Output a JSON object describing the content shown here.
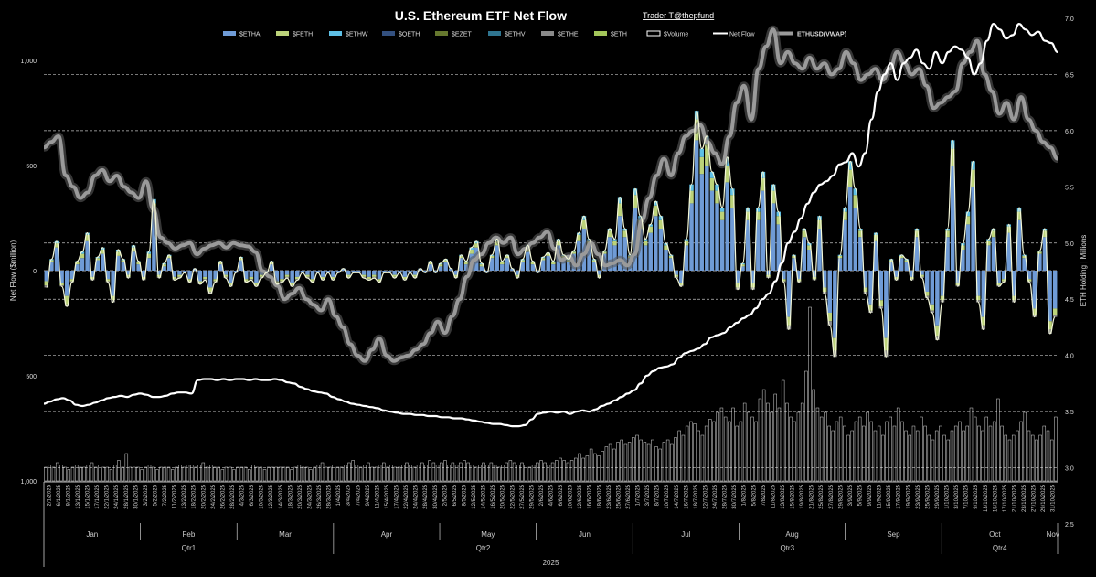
{
  "colors": {
    "background": "#000000",
    "etha": "#6f9bd6",
    "feth": "#bcd37a",
    "ethw": "#5ec0e6",
    "qeth": "#33507f",
    "ezet": "#66782e",
    "ethv": "#2f7590",
    "ethe": "#8a8a8a",
    "eth": "#a3c65a",
    "volume": "#ffffff",
    "netflow": "#ffffff",
    "ethusd": "#9a9a9a",
    "grid": "#bfbfbf",
    "red_tick": "#e03030"
  },
  "chart_data": {
    "type": "bar",
    "title": "U.S. Ethereum ETF Net Flow",
    "credit": "Trader T@thepfund",
    "ylabel_left": "Net Flow ($million)",
    "ylabel_right": "ETH Holding | Millions",
    "yticks_left": [
      {
        "label": "1,000",
        "value": 1000,
        "color": "#ffffff"
      },
      {
        "label": "500",
        "value": 500,
        "color": "#ffffff"
      },
      {
        "label": "0",
        "value": 0,
        "color": "#ffffff"
      },
      {
        "label": "500",
        "value": -500,
        "color": "#e03030"
      },
      {
        "label": "1,000",
        "value": -1000,
        "color": "#e03030"
      }
    ],
    "ylim_left": [
      -1000,
      1000
    ],
    "yticks_right": [
      "2.5",
      "3.0",
      "3.5",
      "4.0",
      "4.5",
      "5.0",
      "5.5",
      "6.0",
      "6.5",
      "7.0"
    ],
    "ylim_right": [
      2.5,
      7.0
    ],
    "legend": [
      {
        "label": "$ETHA",
        "kind": "bar",
        "color": "#6f9bd6"
      },
      {
        "label": "$FETH",
        "kind": "bar",
        "color": "#bcd37a"
      },
      {
        "label": "$ETHW",
        "kind": "bar",
        "color": "#5ec0e6"
      },
      {
        "label": "$QETH",
        "kind": "bar",
        "color": "#33507f"
      },
      {
        "label": "$EZET",
        "kind": "bar",
        "color": "#66782e"
      },
      {
        "label": "$ETHV",
        "kind": "bar",
        "color": "#2f7590"
      },
      {
        "label": "$ETHE",
        "kind": "bar",
        "color": "#8a8a8a"
      },
      {
        "label": "$ETH",
        "kind": "bar",
        "color": "#a3c65a"
      },
      {
        "label": "$Volume",
        "kind": "box",
        "color": "#ffffff"
      },
      {
        "label": "Net Flow",
        "kind": "line",
        "color": "#ffffff"
      },
      {
        "label": "ETHUSD(VWAP)",
        "kind": "thickline",
        "color": "#9a9a9a"
      }
    ],
    "date_labels": [
      "2/1/2025",
      "6/1/2025",
      "8/1/2025",
      "13/1/2025",
      "15/1/2025",
      "17/1/2025",
      "22/1/2025",
      "24/1/2025",
      "28/1/2025",
      "30/1/2025",
      "3/2/2025",
      "5/2/2025",
      "7/2/2025",
      "11/2/2025",
      "13/2/2025",
      "18/2/2025",
      "20/2/2025",
      "24/2/2025",
      "26/2/2025",
      "28/2/2025",
      "4/3/2025",
      "6/3/2025",
      "10/3/2025",
      "12/3/2025",
      "14/3/2025",
      "18/3/2025",
      "20/3/2025",
      "24/3/2025",
      "26/3/2025",
      "28/3/2025",
      "1/4/2025",
      "3/4/2025",
      "7/4/2025",
      "9/4/2025",
      "11/4/2025",
      "15/4/2025",
      "17/4/2025",
      "22/4/2025",
      "24/4/2025",
      "28/4/2025",
      "30/4/2025",
      "2/5/2025",
      "6/5/2025",
      "8/5/2025",
      "12/5/2025",
      "14/5/2025",
      "16/5/2025",
      "20/5/2025",
      "22/5/2025",
      "27/5/2025",
      "29/5/2025",
      "2/6/2025",
      "4/6/2025",
      "6/6/2025",
      "10/6/2025",
      "12/6/2025",
      "16/6/2025",
      "18/6/2025",
      "23/6/2025",
      "25/6/2025",
      "27/6/2025",
      "1/7/2025",
      "3/7/2025",
      "8/7/2025",
      "10/7/2025",
      "14/7/2025",
      "16/7/2025",
      "18/7/2025",
      "22/7/2025",
      "24/7/2025",
      "28/7/2025",
      "30/7/2025",
      "1/8/2025",
      "5/8/2025",
      "7/8/2025",
      "11/8/2025",
      "13/8/2025",
      "15/8/2025",
      "19/8/2025",
      "21/8/2025",
      "25/8/2025",
      "27/8/2025",
      "29/8/2025",
      "3/9/2025",
      "5/9/2025",
      "9/9/2025",
      "11/9/2025",
      "15/9/2025",
      "17/9/2025",
      "19/9/2025",
      "23/9/2025",
      "25/9/2025",
      "29/9/2025",
      "1/10/2025",
      "3/10/2025",
      "7/10/2025",
      "9/10/2025",
      "13/10/2025",
      "15/10/2025",
      "17/10/2025",
      "21/10/2025",
      "23/10/2025",
      "27/10/2025",
      "29/10/2025",
      "31/10/2025"
    ],
    "months": [
      {
        "label": "Jan",
        "start": 0,
        "end": 10
      },
      {
        "label": "Feb",
        "start": 10,
        "end": 20
      },
      {
        "label": "Mar",
        "start": 20,
        "end": 30
      },
      {
        "label": "Apr",
        "start": 30,
        "end": 41
      },
      {
        "label": "May",
        "start": 41,
        "end": 51
      },
      {
        "label": "Jun",
        "start": 51,
        "end": 61
      },
      {
        "label": "Jul",
        "start": 61,
        "end": 72
      },
      {
        "label": "Aug",
        "start": 72,
        "end": 83
      },
      {
        "label": "Sep",
        "start": 83,
        "end": 93
      },
      {
        "label": "Oct",
        "start": 93,
        "end": 104
      },
      {
        "label": "Nov",
        "start": 104,
        "end": 105
      }
    ],
    "quarters": [
      {
        "label": "Qtr1",
        "start": 0,
        "end": 30
      },
      {
        "label": "Qtr2",
        "start": 30,
        "end": 61
      },
      {
        "label": "Qtr3",
        "start": 61,
        "end": 93
      },
      {
        "label": "Qtr4",
        "start": 93,
        "end": 105
      }
    ],
    "year": "2025",
    "etha_daily": [
      -50,
      40,
      110,
      -60,
      -120,
      -40,
      30,
      60,
      140,
      -30,
      50,
      80,
      -40,
      -120,
      70,
      40,
      -20,
      90,
      30,
      -30,
      60,
      280,
      -20,
      20,
      60,
      -30,
      -20,
      -10,
      -40,
      10,
      -50,
      -30,
      -80,
      -40,
      30,
      -20,
      -60,
      -10,
      50,
      -40,
      -30,
      -60,
      -20,
      -10,
      30,
      -50,
      -40,
      -20,
      -60,
      -30,
      -10,
      -20,
      -40,
      -10,
      -30,
      -10,
      -30,
      -10,
      10,
      -20,
      -10,
      -10,
      -20,
      -30,
      -20,
      -40,
      -10,
      -10,
      -20,
      -10,
      -30,
      -10,
      -20,
      10,
      -10,
      30,
      -10,
      20,
      40,
      10,
      -20,
      60,
      30,
      80,
      110,
      20,
      -10,
      60,
      120,
      30,
      60,
      10,
      -20,
      40,
      90,
      30,
      -10,
      50,
      70,
      30,
      120,
      60,
      40,
      80,
      140,
      200,
      120,
      40,
      -20,
      80,
      160,
      120,
      260,
      160,
      60,
      300,
      200,
      120,
      180,
      260,
      200,
      100,
      60,
      -20,
      -60,
      120,
      320,
      620,
      460,
      500,
      380,
      320,
      240,
      420,
      300,
      -60,
      20,
      240,
      -60,
      240,
      380,
      -20,
      320,
      220,
      -40,
      -220,
      60,
      -40,
      160,
      100,
      -30,
      200,
      -80,
      -200,
      -320,
      60,
      240,
      400,
      300,
      160,
      -80,
      -160,
      140,
      -140,
      -320,
      40,
      -30,
      60,
      40,
      -30,
      160,
      -20,
      -100,
      -160,
      -260,
      -120,
      160,
      500,
      -60,
      100,
      220,
      400,
      -120,
      -220,
      120,
      160,
      -60,
      -40,
      180,
      -120,
      240,
      60,
      -40,
      -180,
      80,
      160,
      -240,
      -180
    ],
    "feth_daily": [
      -20,
      10,
      20,
      -10,
      -40,
      -10,
      10,
      20,
      30,
      -10,
      10,
      20,
      -10,
      -20,
      20,
      10,
      -10,
      20,
      10,
      -10,
      20,
      40,
      -10,
      10,
      10,
      -10,
      -10,
      0,
      -10,
      0,
      -10,
      -10,
      -20,
      -10,
      10,
      -10,
      -10,
      0,
      10,
      -10,
      -10,
      -10,
      -10,
      0,
      10,
      -10,
      -10,
      -10,
      -10,
      -10,
      0,
      -10,
      -10,
      0,
      -10,
      0,
      -10,
      0,
      0,
      -10,
      0,
      0,
      -10,
      -10,
      -10,
      -10,
      0,
      0,
      -10,
      0,
      -10,
      0,
      -10,
      0,
      0,
      10,
      0,
      10,
      10,
      0,
      -10,
      10,
      10,
      20,
      20,
      10,
      0,
      10,
      20,
      10,
      10,
      0,
      -10,
      10,
      20,
      10,
      0,
      10,
      10,
      10,
      20,
      10,
      10,
      10,
      30,
      40,
      20,
      10,
      -10,
      10,
      30,
      20,
      60,
      30,
      10,
      60,
      40,
      20,
      30,
      50,
      40,
      20,
      10,
      -10,
      -10,
      20,
      60,
      100,
      80,
      100,
      60,
      60,
      40,
      80,
      60,
      -20,
      10,
      40,
      -20,
      40,
      60,
      -10,
      60,
      40,
      -10,
      -40,
      10,
      -10,
      30,
      20,
      -10,
      40,
      -20,
      -40,
      -60,
      10,
      40,
      80,
      60,
      30,
      -20,
      -30,
      30,
      -30,
      -60,
      10,
      -10,
      10,
      10,
      -10,
      30,
      -10,
      -20,
      -30,
      -50,
      -20,
      30,
      80,
      -10,
      20,
      40,
      80,
      -20,
      -40,
      20,
      30,
      -10,
      -10,
      30,
      -20,
      40,
      10,
      -10,
      -30,
      10,
      30,
      -40,
      -30
    ],
    "etf_other_daily": [
      -10,
      5,
      10,
      -5,
      -10,
      -5,
      5,
      10,
      10,
      -5,
      5,
      10,
      -5,
      -10,
      10,
      5,
      -5,
      10,
      5,
      -5,
      10,
      20,
      -5,
      5,
      5,
      -5,
      -5,
      0,
      -5,
      0,
      -5,
      -5,
      -10,
      -5,
      5,
      -5,
      -5,
      0,
      5,
      -5,
      -5,
      -5,
      -5,
      0,
      5,
      -5,
      -5,
      -5,
      -5,
      -5,
      0,
      -5,
      -5,
      0,
      -5,
      0,
      -5,
      0,
      0,
      -5,
      0,
      0,
      -5,
      -5,
      -5,
      -5,
      0,
      0,
      -5,
      0,
      -5,
      0,
      -5,
      0,
      0,
      5,
      0,
      5,
      5,
      0,
      -5,
      5,
      5,
      10,
      10,
      5,
      0,
      5,
      10,
      5,
      5,
      0,
      -5,
      5,
      10,
      5,
      0,
      5,
      5,
      5,
      10,
      5,
      5,
      5,
      10,
      20,
      10,
      5,
      -5,
      5,
      10,
      10,
      30,
      10,
      5,
      30,
      20,
      10,
      10,
      20,
      20,
      10,
      5,
      -5,
      -5,
      10,
      30,
      40,
      40,
      40,
      30,
      30,
      20,
      40,
      30,
      -10,
      5,
      20,
      -10,
      20,
      30,
      -5,
      30,
      20,
      -5,
      -20,
      5,
      -5,
      10,
      10,
      -5,
      20,
      -10,
      -20,
      -30,
      5,
      20,
      40,
      30,
      10,
      -10,
      -10,
      10,
      -10,
      -30,
      5,
      -5,
      5,
      5,
      -5,
      10,
      -5,
      -10,
      -10,
      -20,
      -10,
      10,
      40,
      -5,
      10,
      20,
      40,
      -10,
      -20,
      10,
      10,
      -5,
      -5,
      10,
      -10,
      20,
      5,
      -5,
      -10,
      5,
      10,
      -20,
      -10
    ],
    "volume_daily": [
      0.3,
      0.35,
      0.3,
      0.4,
      0.35,
      0.3,
      0.25,
      0.3,
      0.35,
      0.3,
      0.3,
      0.35,
      0.4,
      0.3,
      0.35,
      0.3,
      0.3,
      0.25,
      0.35,
      0.45,
      0.3,
      0.6,
      0.3,
      0.3,
      0.3,
      0.25,
      0.3,
      0.35,
      0.3,
      0.25,
      0.3,
      0.3,
      0.3,
      0.25,
      0.3,
      0.35,
      0.3,
      0.35,
      0.35,
      0.3,
      0.35,
      0.4,
      0.3,
      0.35,
      0.3,
      0.3,
      0.25,
      0.3,
      0.3,
      0.25,
      0.3,
      0.3,
      0.3,
      0.25,
      0.35,
      0.3,
      0.3,
      0.25,
      0.3,
      0.3,
      0.3,
      0.3,
      0.3,
      0.3,
      0.25,
      0.3,
      0.35,
      0.3,
      0.3,
      0.25,
      0.3,
      0.35,
      0.4,
      0.3,
      0.3,
      0.35,
      0.3,
      0.3,
      0.35,
      0.4,
      0.45,
      0.35,
      0.3,
      0.35,
      0.4,
      0.3,
      0.3,
      0.35,
      0.4,
      0.3,
      0.35,
      0.3,
      0.3,
      0.35,
      0.4,
      0.35,
      0.3,
      0.35,
      0.4,
      0.35,
      0.45,
      0.4,
      0.35,
      0.4,
      0.45,
      0.35,
      0.4,
      0.35,
      0.4,
      0.45,
      0.4,
      0.35,
      0.3,
      0.35,
      0.4,
      0.35,
      0.4,
      0.35,
      0.3,
      0.35,
      0.4,
      0.45,
      0.4,
      0.35,
      0.4,
      0.35,
      0.3,
      0.35,
      0.4,
      0.45,
      0.4,
      0.35,
      0.4,
      0.45,
      0.5,
      0.45,
      0.4,
      0.45,
      0.5,
      0.6,
      0.5,
      0.55,
      0.7,
      0.6,
      0.55,
      0.65,
      0.75,
      0.8,
      0.7,
      0.85,
      0.9,
      0.8,
      0.85,
      0.95,
      1.0,
      0.9,
      0.85,
      0.8,
      0.9,
      0.75,
      0.7,
      0.85,
      0.9,
      0.8,
      0.95,
      1.1,
      1.0,
      1.2,
      1.3,
      1.25,
      1.1,
      1.0,
      1.2,
      1.35,
      1.3,
      1.5,
      1.6,
      1.4,
      1.3,
      1.6,
      1.2,
      1.3,
      1.7,
      1.5,
      1.4,
      1.3,
      1.8,
      2.0,
      1.7,
      1.5,
      1.9,
      1.6,
      2.2,
      1.7,
      1.4,
      1.3,
      1.5,
      1.7,
      2.4,
      3.8,
      2.0,
      1.6,
      1.4,
      1.5,
      1.2,
      1.1,
      1.3,
      1.4,
      1.2,
      1.0,
      1.1,
      1.3,
      1.4,
      1.2,
      1.5,
      1.3,
      1.1,
      1.2,
      1.0,
      1.3,
      1.4,
      1.2,
      1.6,
      1.3,
      1.1,
      1.0,
      1.2,
      1.1,
      1.4,
      1.2,
      1.0,
      0.9,
      1.1,
      1.2,
      1.0,
      0.9,
      1.1,
      1.2,
      1.3,
      1.1,
      1.2,
      1.6,
      1.4,
      1.2,
      1.1,
      1.4,
      1.2,
      1.3,
      1.8,
      1.2,
      1.0,
      0.9,
      1.0,
      1.1,
      1.3,
      1.5,
      1.1,
      1.0,
      0.9,
      1.0,
      1.2,
      1.1,
      0.9,
      1.4
    ],
    "net_flow_cum_millions": [
      3.57,
      3.59,
      3.61,
      3.62,
      3.6,
      3.56,
      3.55,
      3.56,
      3.58,
      3.6,
      3.62,
      3.63,
      3.64,
      3.63,
      3.65,
      3.66,
      3.65,
      3.63,
      3.63,
      3.64,
      3.66,
      3.67,
      3.67,
      3.66,
      3.78,
      3.79,
      3.79,
      3.78,
      3.79,
      3.78,
      3.79,
      3.79,
      3.78,
      3.79,
      3.78,
      3.78,
      3.79,
      3.78,
      3.76,
      3.75,
      3.72,
      3.7,
      3.68,
      3.67,
      3.66,
      3.63,
      3.61,
      3.59,
      3.57,
      3.56,
      3.55,
      3.54,
      3.53,
      3.51,
      3.5,
      3.49,
      3.48,
      3.48,
      3.47,
      3.47,
      3.46,
      3.46,
      3.45,
      3.45,
      3.44,
      3.44,
      3.43,
      3.42,
      3.41,
      3.4,
      3.39,
      3.39,
      3.38,
      3.37,
      3.37,
      3.38,
      3.43,
      3.48,
      3.49,
      3.5,
      3.49,
      3.5,
      3.48,
      3.5,
      3.51,
      3.5,
      3.52,
      3.55,
      3.57,
      3.6,
      3.63,
      3.66,
      3.69,
      3.75,
      3.82,
      3.86,
      3.89,
      3.9,
      3.92,
      3.98,
      4.02,
      4.04,
      4.06,
      4.1,
      4.16,
      4.18,
      4.2,
      4.25,
      4.29,
      4.33,
      4.36,
      4.42,
      4.5,
      4.55,
      4.66,
      4.82,
      5.0,
      5.1,
      5.22,
      5.35,
      5.45,
      5.52,
      5.55,
      5.6,
      5.7,
      5.72,
      5.8,
      5.68,
      5.8,
      6.1,
      6.35,
      6.5,
      6.6,
      6.45,
      6.6,
      6.65,
      6.72,
      6.6,
      6.55,
      6.7,
      6.6,
      6.7,
      6.75,
      6.72,
      6.65,
      6.5,
      6.6,
      6.8,
      6.95,
      6.9,
      6.82,
      6.85,
      6.95,
      6.9,
      6.85,
      6.88,
      6.8,
      6.78,
      6.7
    ],
    "ethusd_vwap_millions": [
      5.85,
      5.9,
      5.95,
      5.6,
      5.5,
      5.4,
      5.45,
      5.6,
      5.65,
      5.55,
      5.6,
      5.5,
      5.45,
      5.4,
      5.55,
      5.3,
      5.05,
      5.0,
      4.95,
      4.98,
      5.0,
      4.9,
      4.95,
      4.98,
      5.0,
      4.96,
      5.0,
      4.98,
      4.97,
      4.92,
      4.75,
      4.7,
      4.62,
      4.5,
      4.55,
      4.6,
      4.5,
      4.45,
      4.4,
      4.5,
      4.35,
      4.25,
      4.1,
      4.0,
      3.95,
      4.05,
      4.15,
      4.0,
      3.95,
      3.98,
      4.0,
      4.05,
      4.1,
      4.2,
      4.3,
      4.2,
      4.35,
      4.5,
      4.7,
      4.85,
      4.9,
      5.0,
      5.05,
      5.0,
      5.05,
      4.9,
      4.95,
      5.0,
      5.05,
      5.1,
      4.95,
      4.85,
      4.88,
      4.8,
      4.9,
      5.0,
      4.9,
      4.8,
      4.82,
      4.85,
      4.8,
      4.9,
      5.2,
      5.4,
      5.6,
      5.75,
      5.6,
      5.8,
      5.95,
      6.0,
      6.05,
      5.9,
      5.8,
      5.7,
      5.95,
      6.25,
      6.4,
      6.1,
      6.55,
      6.75,
      6.9,
      6.6,
      6.7,
      6.6,
      6.55,
      6.65,
      6.55,
      6.6,
      6.5,
      6.55,
      6.7,
      6.6,
      6.45,
      6.5,
      6.55,
      6.45,
      6.55,
      6.7,
      6.6,
      6.5,
      6.55,
      6.4,
      6.2,
      6.25,
      6.3,
      6.35,
      6.6,
      6.7,
      6.8,
      6.5,
      6.35,
      6.15,
      6.25,
      6.1,
      6.3,
      6.1,
      6.0,
      5.9,
      5.85,
      5.75
    ]
  }
}
